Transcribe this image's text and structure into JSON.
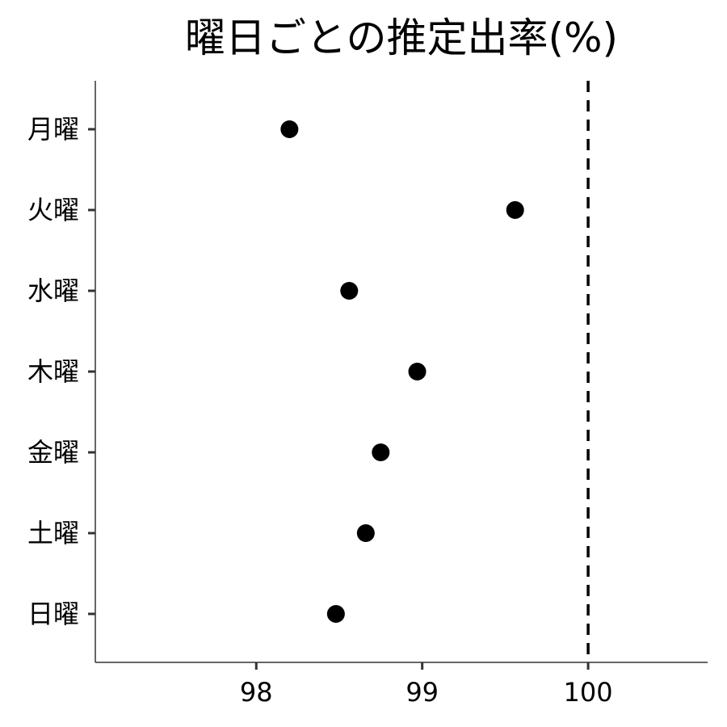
{
  "chart_data": {
    "type": "scatter",
    "title": "曜日ごとの推定出率(%)",
    "xlabel": "",
    "ylabel": "",
    "categories": [
      "月曜",
      "火曜",
      "水曜",
      "木曜",
      "金曜",
      "土曜",
      "日曜"
    ],
    "values": [
      98.2,
      99.56,
      98.56,
      98.97,
      98.75,
      98.66,
      98.48
    ],
    "xlim": [
      97.03,
      100.72
    ],
    "xticks": [
      98,
      99,
      100
    ],
    "xtick_labels": [
      "98",
      "99",
      "100"
    ],
    "reference_line": {
      "x": 100,
      "style": "dashed"
    },
    "grid": false,
    "legend": "none",
    "colors": {
      "point": "#000000",
      "axis": "#333333",
      "reference": "#000000"
    }
  }
}
